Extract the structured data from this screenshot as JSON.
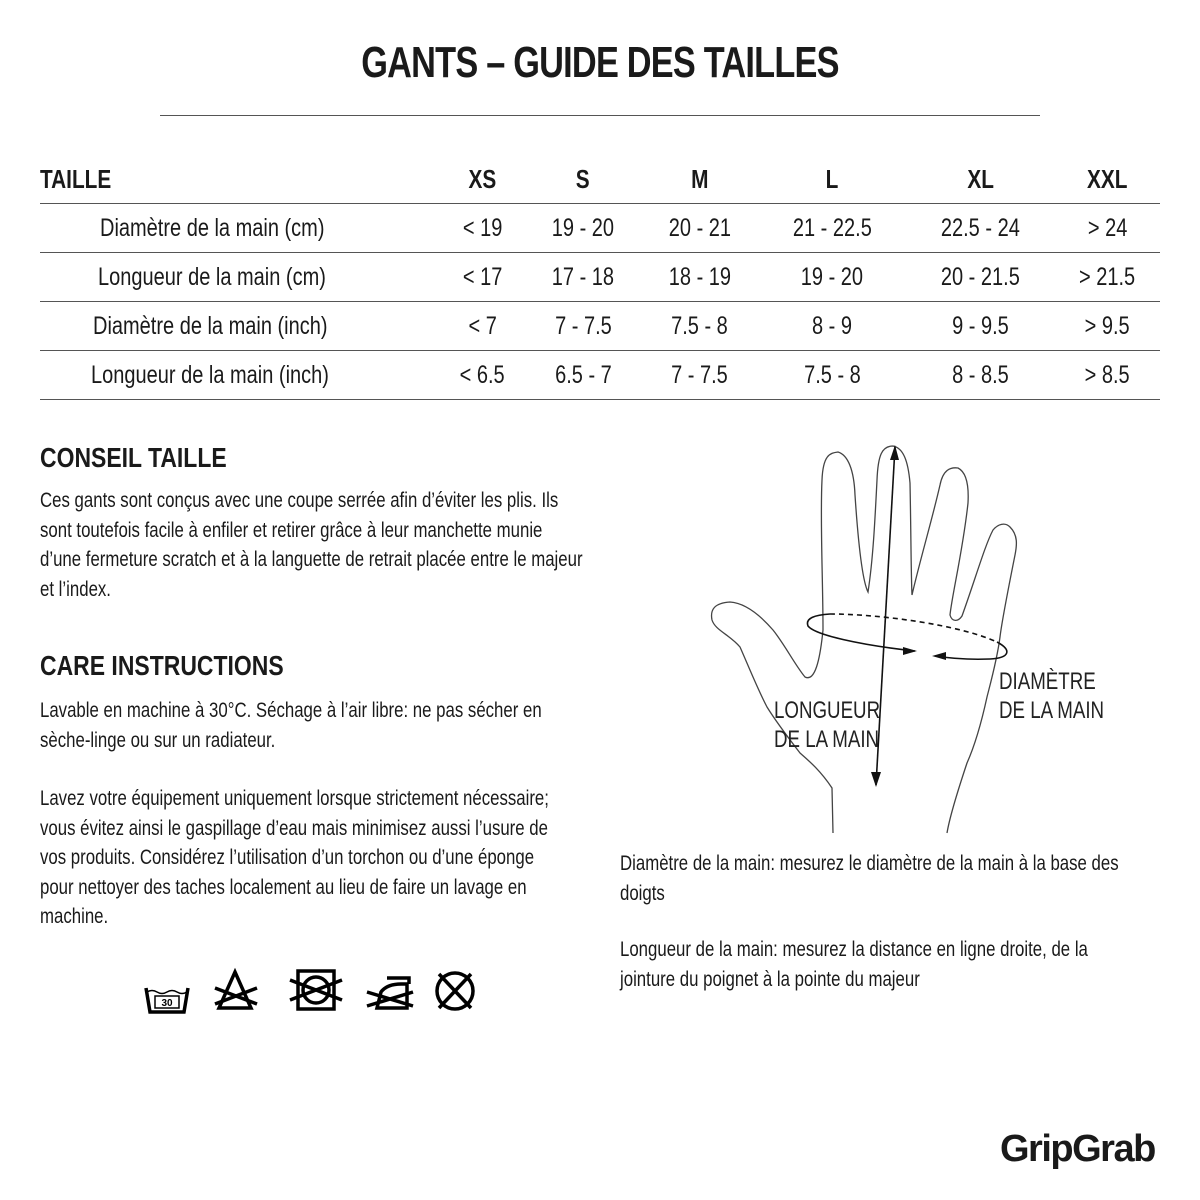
{
  "title": "GANTS – GUIDE DES TAILLES",
  "size_table": {
    "headers": [
      "TAILLE",
      "XS",
      "S",
      "M",
      "L",
      "XL",
      "XXL"
    ],
    "rows": [
      [
        "Diamètre de la main (cm)",
        "< 19",
        "19 - 20",
        "20 - 21",
        "21 - 22.5",
        "22.5 - 24",
        "> 24"
      ],
      [
        "Longueur de la main (cm)",
        "< 17",
        "17 - 18",
        "18 - 19",
        "19 - 20",
        "20 - 21.5",
        "> 21.5"
      ],
      [
        "Diamètre de la main (inch)",
        "< 7",
        "7 - 7.5",
        "7.5 - 8",
        "8 - 9",
        "9 - 9.5",
        "> 9.5"
      ],
      [
        "Longueur de la main (inch)",
        "< 6.5",
        "6.5 - 7",
        "7 - 7.5",
        "7.5 - 8",
        "8 - 8.5",
        "> 8.5"
      ]
    ]
  },
  "size_advice": {
    "heading": "CONSEIL TAILLE",
    "text": "Ces gants sont conçus avec une coupe serrée afin d’éviter les plis. Ils sont toutefois facile à enfiler et retirer grâce à leur manchette munie d’une fermeture scratch et à la languette de retrait placée entre le majeur et l’index."
  },
  "care": {
    "heading": "CARE INSTRUCTIONS",
    "text1": "Lavable en machine à 30°C. Séchage à l’air libre: ne pas sécher en sèche-linge ou sur un radiateur.",
    "text2": "Lavez votre équipement uniquement lorsque strictement nécessaire; vous évitez ainsi le gaspillage d’eau mais minimisez aussi l’usure de vos produits. Considérez l’utilisation d’un torchon ou d’une éponge pour nettoyer des taches localement au lieu de faire un lavage en machine.",
    "icons": [
      "wash-30-icon",
      "no-bleach-icon",
      "no-tumble-dry-icon",
      "no-iron-icon",
      "no-dry-clean-icon"
    ],
    "wash_temp": "30"
  },
  "diagram": {
    "length_label": "LONGUEUR\nDE LA MAIN",
    "diameter_label": "DIAMÈTRE\nDE LA MAIN"
  },
  "notes": {
    "diameter": "Diamètre de la main: mesurez le diamètre de la main à la base des doigts",
    "length": "Longueur de la main: mesurez la distance en ligne droite, de la jointure du poignet à la pointe du majeur"
  },
  "logo": "GripGrab"
}
